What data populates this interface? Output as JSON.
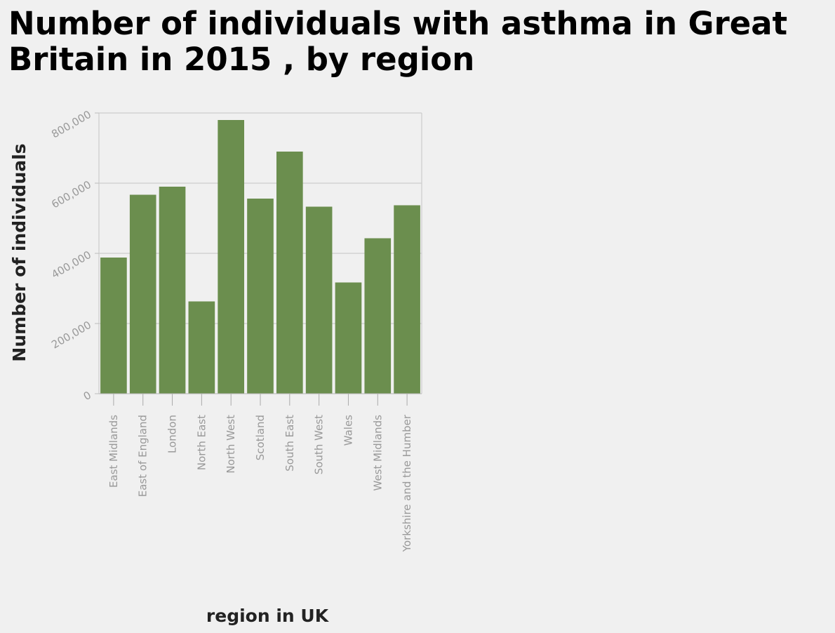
{
  "chart_data": {
    "type": "bar",
    "title": "Number of individuals with asthma in Great Britain in 2015 , by region",
    "xlabel": "region in UK",
    "ylabel": "Number of individuals",
    "categories": [
      "East Midlands",
      "East of England",
      "London",
      "North East",
      "North West",
      "Scotland",
      "South East",
      "South West",
      "Wales",
      "West Midlands",
      "Yorkshire and the Humber"
    ],
    "values": [
      388000,
      567000,
      590000,
      263000,
      780000,
      556000,
      690000,
      533000,
      317000,
      443000,
      537000
    ],
    "yticks": [
      0,
      200000,
      400000,
      600000,
      800000
    ],
    "ytick_labels": [
      "0",
      "200,000",
      "400,000",
      "600,000",
      "800,000"
    ],
    "ylim": [
      0,
      800000
    ],
    "grid": true,
    "bar_color": "#6b8e4e",
    "grid_color": "#cccccc"
  }
}
